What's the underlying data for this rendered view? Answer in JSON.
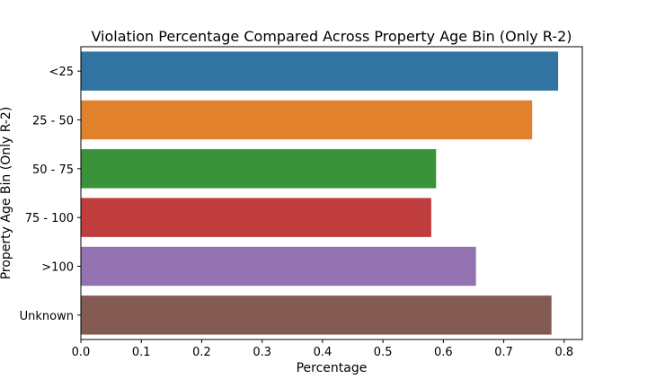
{
  "chart_data": {
    "type": "bar",
    "orientation": "horizontal",
    "title": "Violation Percentage Compared Across Property Age Bin (Only R-2)",
    "xlabel": "Percentage",
    "ylabel": "Property Age Bin (Only R-2)",
    "categories": [
      "<25",
      "25 - 50",
      "50 - 75",
      "75 - 100",
      ">100",
      "Unknown"
    ],
    "values": [
      0.79,
      0.747,
      0.588,
      0.58,
      0.654,
      0.779
    ],
    "colors": [
      "#3274a1",
      "#e1812c",
      "#3a923a",
      "#c03d3e",
      "#9372b2",
      "#845b53"
    ],
    "xlim": [
      0.0,
      0.83
    ],
    "xticks": [
      0.0,
      0.1,
      0.2,
      0.3,
      0.4,
      0.5,
      0.6,
      0.7,
      0.8
    ],
    "xtick_labels": [
      "0.0",
      "0.1",
      "0.2",
      "0.3",
      "0.4",
      "0.5",
      "0.6",
      "0.7",
      "0.8"
    ],
    "grid": false,
    "legend": false
  }
}
